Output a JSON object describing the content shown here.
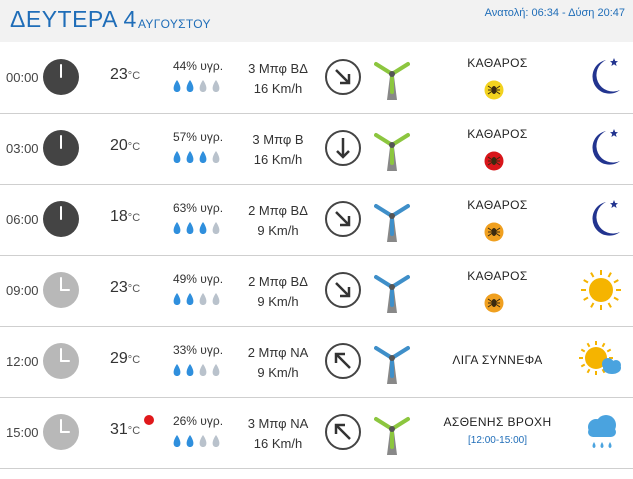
{
  "header": {
    "day": "ΔΕΥΤΕΡΑ 4",
    "month": "ΑΥΓΟΥΣΤΟΥ",
    "sun": "Ανατολή: 06:34 - Δύση 20:47"
  },
  "colors": {
    "accent": "#1f6db8",
    "alert": "#e0181b",
    "drop_full": "#2f8fdd",
    "drop_empty": "#b9c2cc"
  },
  "rows": [
    {
      "time": "00:00",
      "clock_icon": "clock-night-icon",
      "temp": "23",
      "unit": "°C",
      "alert": false,
      "humidity": "44% υγρ.",
      "drops": 2,
      "wind_beaufort": "3 Μπφ ΒΔ",
      "wind_speed": "16 Km/h",
      "wind_arrow": "arrow-southeast-icon",
      "turbine": "green",
      "condition": "ΚΑΘΑΡΟΣ",
      "range": "",
      "bug": "yellow",
      "weather_icon": "moon-icon"
    },
    {
      "time": "03:00",
      "clock_icon": "clock-night-icon",
      "temp": "20",
      "unit": "°C",
      "alert": false,
      "humidity": "57% υγρ.",
      "drops": 3,
      "wind_beaufort": "3 Μπφ Β",
      "wind_speed": "16 Km/h",
      "wind_arrow": "arrow-south-icon",
      "turbine": "green",
      "condition": "ΚΑΘΑΡΟΣ",
      "range": "",
      "bug": "red",
      "weather_icon": "moon-icon"
    },
    {
      "time": "06:00",
      "clock_icon": "clock-night-icon",
      "temp": "18",
      "unit": "°C",
      "alert": false,
      "humidity": "63% υγρ.",
      "drops": 3,
      "wind_beaufort": "2 Μπφ ΒΔ",
      "wind_speed": "9 Km/h",
      "wind_arrow": "arrow-southeast-icon",
      "turbine": "blue",
      "condition": "ΚΑΘΑΡΟΣ",
      "range": "",
      "bug": "orange",
      "weather_icon": "moon-icon"
    },
    {
      "time": "09:00",
      "clock_icon": "clock-day-icon",
      "temp": "23",
      "unit": "°C",
      "alert": false,
      "humidity": "49% υγρ.",
      "drops": 2,
      "wind_beaufort": "2 Μπφ ΒΔ",
      "wind_speed": "9 Km/h",
      "wind_arrow": "arrow-southeast-icon",
      "turbine": "blue",
      "condition": "ΚΑΘΑΡΟΣ",
      "range": "",
      "bug": "orange",
      "weather_icon": "sun-icon"
    },
    {
      "time": "12:00",
      "clock_icon": "clock-day-icon",
      "temp": "29",
      "unit": "°C",
      "alert": false,
      "humidity": "33% υγρ.",
      "drops": 2,
      "wind_beaufort": "2 Μπφ ΝΑ",
      "wind_speed": "9 Km/h",
      "wind_arrow": "arrow-northwest-icon",
      "turbine": "blue",
      "condition": "ΛΙΓΑ ΣΥΝΝΕΦΑ",
      "range": "",
      "bug": "",
      "weather_icon": "sun-cloud-icon"
    },
    {
      "time": "15:00",
      "clock_icon": "clock-day-icon",
      "temp": "31",
      "unit": "°C",
      "alert": true,
      "humidity": "26% υγρ.",
      "drops": 2,
      "wind_beaufort": "3 Μπφ ΝΑ",
      "wind_speed": "16 Km/h",
      "wind_arrow": "arrow-northwest-icon",
      "turbine": "green",
      "condition": "ΑΣΘΕΝΗΣ ΒΡΟΧΗ",
      "range": "[12:00-15:00]",
      "bug": "",
      "weather_icon": "rain-cloud-icon"
    }
  ]
}
